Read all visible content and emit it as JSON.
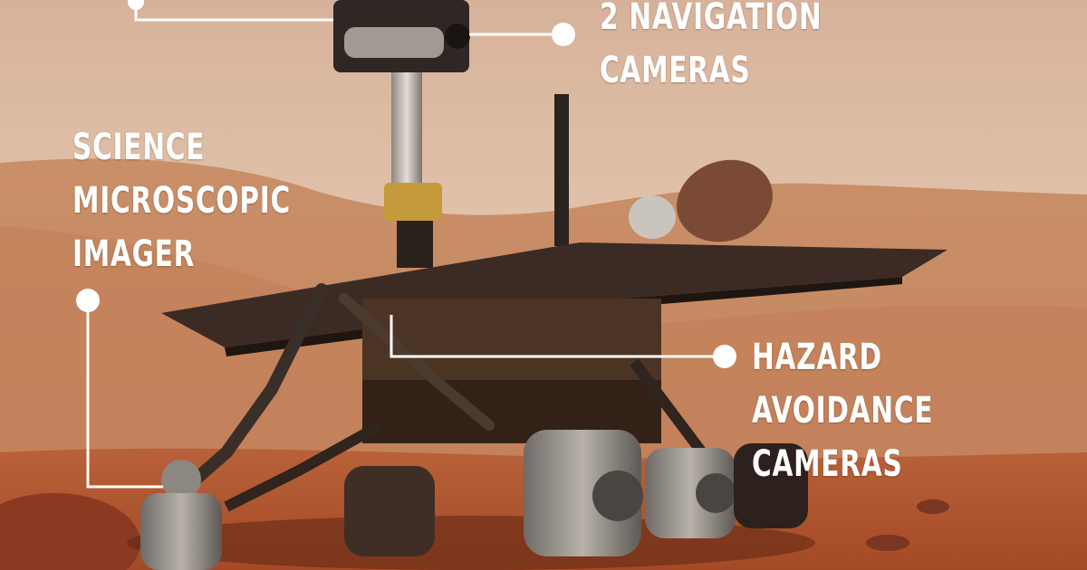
{
  "labels": {
    "navigation": [
      "2 NAVIGATION",
      "CAMERAS"
    ],
    "science": [
      "SCIENCE",
      "MICROSCOPIC",
      "IMAGER"
    ],
    "hazard": [
      "HAZARD",
      "AVOIDANCE",
      "CAMERAS"
    ]
  },
  "colors": {
    "sky": "#e2c2a8",
    "ground": "#b4532c",
    "callout": "#ffffff",
    "rover_body": "#3a2a22"
  }
}
